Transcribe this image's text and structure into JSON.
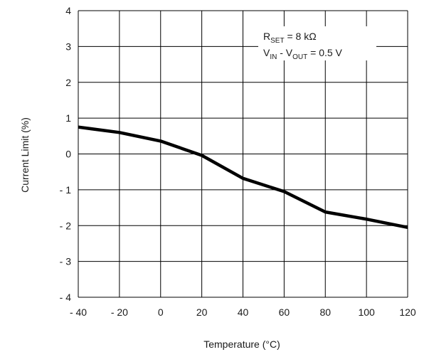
{
  "chart_data": {
    "type": "line",
    "title": "",
    "xlabel": "Temperature (°C)",
    "ylabel": "Current Limit (%)",
    "xlim": [
      -40,
      120
    ],
    "ylim": [
      -4,
      4
    ],
    "grid": true,
    "x_ticks": [
      -40,
      -20,
      0,
      20,
      40,
      60,
      80,
      100,
      120
    ],
    "y_ticks": [
      4,
      3,
      2,
      1,
      0,
      -1,
      -2,
      -3,
      -4
    ],
    "x_tick_labels": [
      "- 40",
      "- 20",
      "0",
      "20",
      "40",
      "60",
      "80",
      "100",
      "120"
    ],
    "y_tick_labels": [
      "4",
      "3",
      "2",
      "1",
      "0",
      "- 1",
      "- 2",
      "- 3",
      "- 4"
    ],
    "series": [
      {
        "x": [
          -40,
          -20,
          0,
          20,
          40,
          60,
          80,
          100,
          120
        ],
        "y": [
          0.75,
          0.6,
          0.36,
          -0.04,
          -0.68,
          -1.05,
          -1.62,
          -1.82,
          -2.05
        ],
        "color": "#000000"
      }
    ],
    "annotation": {
      "line1": {
        "main": "R",
        "sub": "SET",
        "rest": " = 8 kΩ"
      },
      "line2": {
        "main1": "V",
        "sub1": "IN",
        "mid": " - V",
        "sub2": "OUT",
        "rest": " = 0.5 V"
      }
    }
  }
}
